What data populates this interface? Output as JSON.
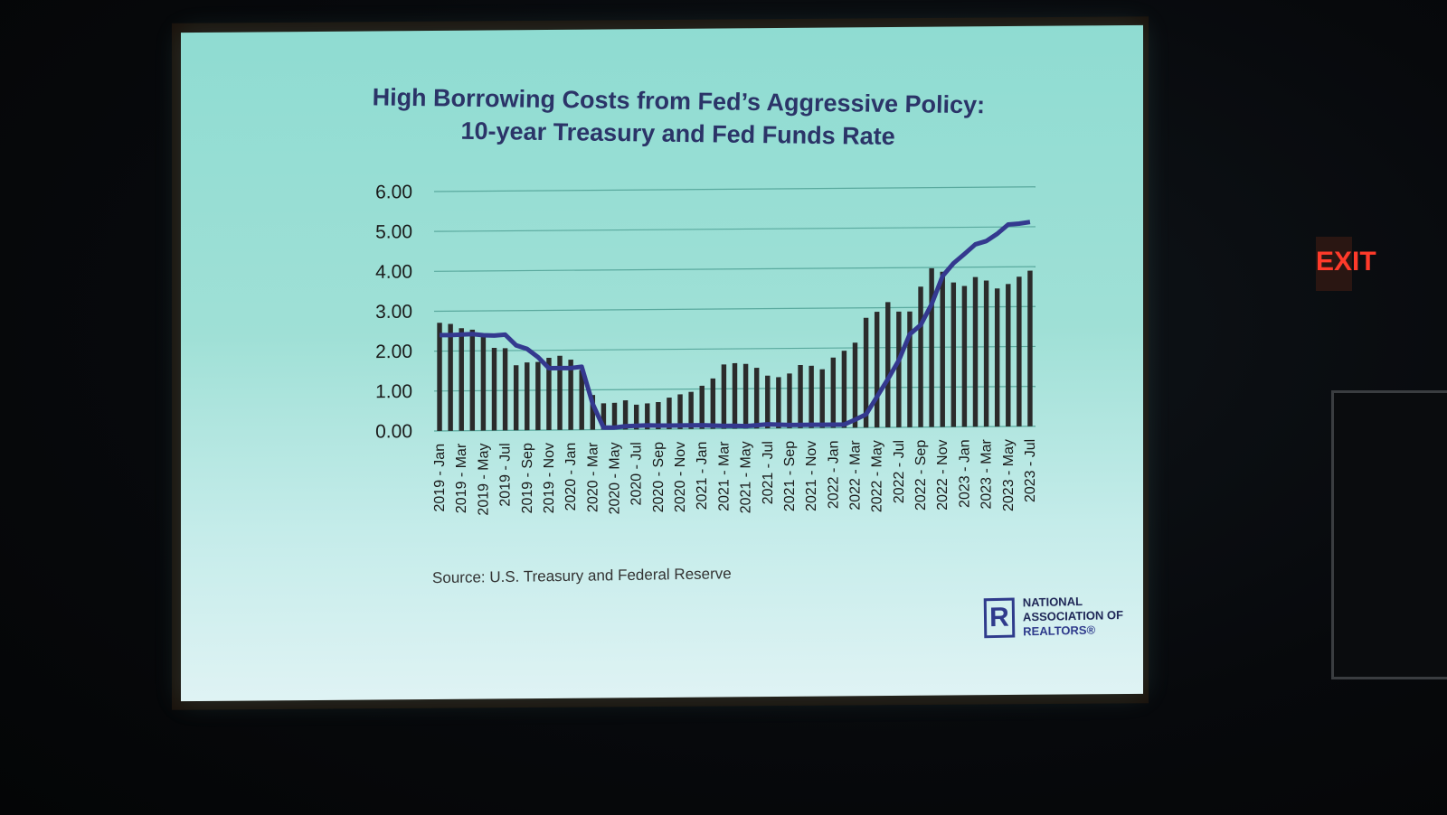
{
  "title_lines": [
    "High Borrowing Costs from Fed’s Aggressive Policy:",
    "10-year Treasury and Fed Funds Rate"
  ],
  "source": "Source: U.S. Treasury and Federal Reserve",
  "logo": {
    "line1": "NATIONAL",
    "line2": "ASSOCIATION OF",
    "line3": "REALTORS®",
    "mark": "R"
  },
  "exit_sign": "EXIT",
  "colors": {
    "bar": "#2b2b2b",
    "line": "#34398f",
    "title": "#2b3468",
    "gridline": "#5aa99e",
    "screen": "#9fe0d6"
  },
  "chart_data": {
    "type": "bar",
    "title": "High Borrowing Costs from Fed’s Aggressive Policy: 10-year Treasury and Fed Funds Rate",
    "xlabel": "",
    "ylabel": "",
    "ylim": [
      0,
      6
    ],
    "grid": true,
    "yticks": [
      "0.00",
      "1.00",
      "2.00",
      "3.00",
      "4.00",
      "5.00",
      "6.00"
    ],
    "x": [
      "2019 - Jan",
      "2019 - Feb",
      "2019 - Mar",
      "2019 - Apr",
      "2019 - May",
      "2019 - Jun",
      "2019 - Jul",
      "2019 - Aug",
      "2019 - Sep",
      "2019 - Oct",
      "2019 - Nov",
      "2019 - Dec",
      "2020 - Jan",
      "2020 - Feb",
      "2020 - Mar",
      "2020 - Apr",
      "2020 - May",
      "2020 - Jun",
      "2020 - Jul",
      "2020 - Aug",
      "2020 - Sep",
      "2020 - Oct",
      "2020 - Nov",
      "2020 - Dec",
      "2021 - Jan",
      "2021 - Feb",
      "2021 - Mar",
      "2021 - Apr",
      "2021 - May",
      "2021 - Jun",
      "2021 - Jul",
      "2021 - Aug",
      "2021 - Sep",
      "2021 - Oct",
      "2021 - Nov",
      "2021 - Dec",
      "2022 - Jan",
      "2022 - Feb",
      "2022 - Mar",
      "2022 - Apr",
      "2022 - May",
      "2022 - Jun",
      "2022 - Jul",
      "2022 - Aug",
      "2022 - Sep",
      "2022 - Oct",
      "2022 - Nov",
      "2022 - Dec",
      "2023 - Jan",
      "2023 - Feb",
      "2023 - Mar",
      "2023 - Apr",
      "2023 - May",
      "2023 - Jun",
      "2023 - Jul"
    ],
    "tick_labels": [
      "2019 - Jan",
      "2019 - Mar",
      "2019 - May",
      "2019 - Jul",
      "2019 - Sep",
      "2019 - Nov",
      "2020 - Jan",
      "2020 - Mar",
      "2020 - May",
      "2020 - Jul",
      "2020 - Sep",
      "2020 - Nov",
      "2021 - Jan",
      "2021 - Mar",
      "2021 - May",
      "2021 - Jul",
      "2021 - Sep",
      "2021 - Nov",
      "2022 - Jan",
      "2022 - Mar",
      "2022 - May",
      "2022 - Jul",
      "2022 - Sep",
      "2022 - Nov",
      "2023 - Jan",
      "2023 - Mar",
      "2023 - May",
      "2023 - Jul"
    ],
    "series": [
      {
        "type": "bar",
        "values": [
          2.71,
          2.68,
          2.57,
          2.53,
          2.4,
          2.07,
          2.06,
          1.63,
          1.7,
          1.71,
          1.81,
          1.86,
          1.76,
          1.5,
          0.87,
          0.66,
          0.67,
          0.73,
          0.62,
          0.65,
          0.68,
          0.79,
          0.87,
          0.93,
          1.08,
          1.26,
          1.61,
          1.64,
          1.62,
          1.52,
          1.32,
          1.28,
          1.37,
          1.58,
          1.56,
          1.47,
          1.76,
          1.93,
          2.13,
          2.75,
          2.9,
          3.14,
          2.9,
          2.9,
          3.52,
          3.98,
          3.89,
          3.62,
          3.53,
          3.75,
          3.66,
          3.46,
          3.57,
          3.75,
          3.9
        ]
      },
      {
        "type": "line",
        "values": [
          2.4,
          2.4,
          2.41,
          2.42,
          2.39,
          2.38,
          2.4,
          2.13,
          2.04,
          1.83,
          1.55,
          1.55,
          1.55,
          1.58,
          0.65,
          0.05,
          0.05,
          0.08,
          0.09,
          0.1,
          0.09,
          0.09,
          0.09,
          0.09,
          0.09,
          0.08,
          0.07,
          0.07,
          0.06,
          0.08,
          0.1,
          0.09,
          0.08,
          0.08,
          0.08,
          0.08,
          0.08,
          0.08,
          0.2,
          0.33,
          0.77,
          1.21,
          1.68,
          2.33,
          2.56,
          3.08,
          3.78,
          4.1,
          4.33,
          4.57,
          4.65,
          4.83,
          5.06,
          5.08,
          5.12
        ]
      }
    ]
  }
}
